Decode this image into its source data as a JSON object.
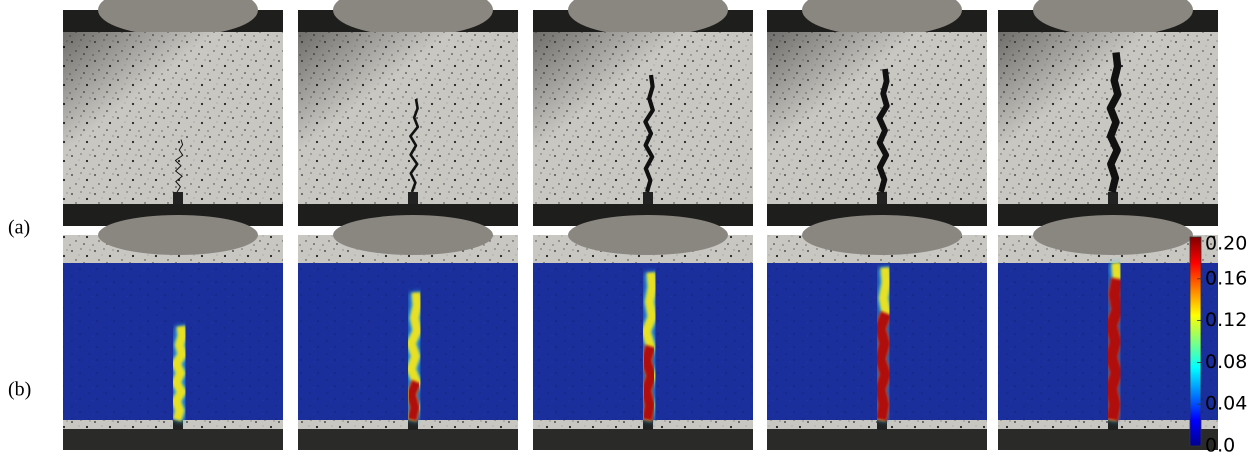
{
  "labels": [
    "(a)",
    "(b)"
  ],
  "colorbar": {
    "lim": [
      0,
      0.2
    ],
    "ticks": [
      {
        "value": 0,
        "label": "0.0"
      },
      0.04,
      0.08,
      0.12,
      0.16,
      {
        "value": 0.2,
        "label": "0.20"
      }
    ]
  }
}
